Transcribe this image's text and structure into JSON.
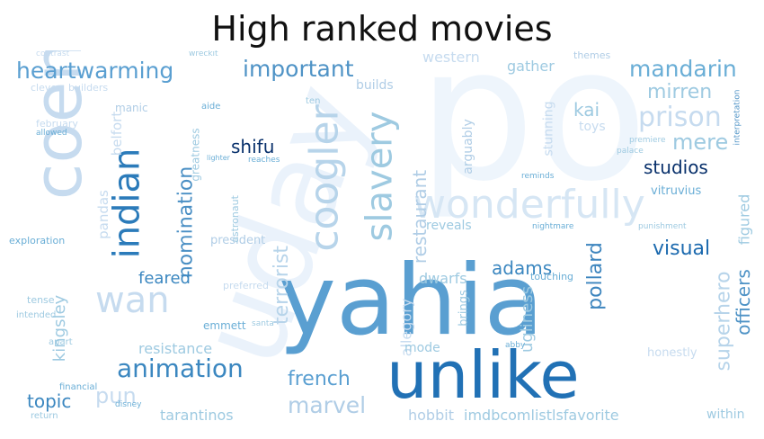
{
  "title": "High ranked movies",
  "words": [
    {
      "text": "po",
      "color": "#eef5fc"
    },
    {
      "text": "coen",
      "color": "#c6dbef"
    },
    {
      "text": "uday",
      "color": "#eaf2fb"
    },
    {
      "text": "yahia",
      "color": "#5a9fd1"
    },
    {
      "text": "unlike",
      "color": "#2171b5"
    },
    {
      "text": "wonderfully",
      "color": "#d6e6f4"
    },
    {
      "text": "slavery",
      "color": "#9ecae1"
    },
    {
      "text": "coogler",
      "color": "#b7d4ea"
    },
    {
      "text": "indian",
      "color": "#2b7bba"
    },
    {
      "text": "wan",
      "color": "#c6dbef"
    },
    {
      "text": "heartwarming",
      "color": "#5a9fd1"
    },
    {
      "text": "important",
      "color": "#4f93c6"
    },
    {
      "text": "mandarin",
      "color": "#6aaed6"
    },
    {
      "text": "mirren",
      "color": "#9ecae1"
    },
    {
      "text": "prison",
      "color": "#c6dbef"
    },
    {
      "text": "mere",
      "color": "#9ecae1"
    },
    {
      "text": "kai",
      "color": "#9ecae1"
    },
    {
      "text": "studios",
      "color": "#08306b"
    },
    {
      "text": "visual",
      "color": "#1c6aaf"
    },
    {
      "text": "shifu",
      "color": "#08306b"
    },
    {
      "text": "nomination",
      "color": "#4a8fc4"
    },
    {
      "text": "animation",
      "color": "#3b87c0"
    },
    {
      "text": "restaurant",
      "color": "#b0cde6"
    },
    {
      "text": "terrorist",
      "color": "#b7d4ea"
    },
    {
      "text": "adams",
      "color": "#3b87c0"
    },
    {
      "text": "pollard",
      "color": "#3d85be"
    },
    {
      "text": "superhero",
      "color": "#b7d4ea"
    },
    {
      "text": "officers",
      "color": "#4f93c6"
    },
    {
      "text": "figured",
      "color": "#9ecae1"
    },
    {
      "text": "marvel",
      "color": "#b0cde6"
    },
    {
      "text": "french",
      "color": "#5a9fd1"
    },
    {
      "text": "topic",
      "color": "#3b87c0"
    },
    {
      "text": "pun",
      "color": "#c6dbef"
    },
    {
      "text": "allegory",
      "color": "#c6dbef"
    },
    {
      "text": "feared",
      "color": "#3b87c0"
    },
    {
      "text": "dwarfs",
      "color": "#9ecae1"
    },
    {
      "text": "ugliness",
      "color": "#9ecae1"
    },
    {
      "text": "kingsley",
      "color": "#9ecae1"
    },
    {
      "text": "resistance",
      "color": "#9ecae1"
    },
    {
      "text": "tarantinos",
      "color": "#9ecae1"
    },
    {
      "text": "imdbcomlistlsfavorite",
      "color": "#9ecae1"
    },
    {
      "text": "hobbit",
      "color": "#b0cde6"
    },
    {
      "text": "within",
      "color": "#9ecae1"
    },
    {
      "text": "pandas",
      "color": "#c6dbef"
    },
    {
      "text": "belfort",
      "color": "#c6dbef"
    },
    {
      "text": "greatness",
      "color": "#9ecae1"
    },
    {
      "text": "arguably",
      "color": "#b0cde6"
    },
    {
      "text": "stunning",
      "color": "#c6dbef"
    },
    {
      "text": "toys",
      "color": "#c6dbef"
    },
    {
      "text": "gather",
      "color": "#9ecae1"
    },
    {
      "text": "builds",
      "color": "#b0cde6"
    },
    {
      "text": "builders",
      "color": "#c6dbef"
    },
    {
      "text": "reveals",
      "color": "#9ecae1"
    },
    {
      "text": "vitruvius",
      "color": "#6aaed6"
    },
    {
      "text": "president",
      "color": "#b0cde6"
    },
    {
      "text": "astronaut",
      "color": "#9ecae1"
    },
    {
      "text": "emmett",
      "color": "#6aaed6"
    },
    {
      "text": "mode",
      "color": "#9ecae1"
    },
    {
      "text": "brings",
      "color": "#9ecae1"
    },
    {
      "text": "exploration",
      "color": "#6aaed6"
    },
    {
      "text": "manic",
      "color": "#b0cde6"
    },
    {
      "text": "february",
      "color": "#c6dbef"
    },
    {
      "text": "clever",
      "color": "#c6dbef"
    },
    {
      "text": "allowed",
      "color": "#6aaed6"
    },
    {
      "text": "preferred",
      "color": "#c6dbef"
    },
    {
      "text": "tense",
      "color": "#9ecae1"
    },
    {
      "text": "intended",
      "color": "#9ecae1"
    },
    {
      "text": "apart",
      "color": "#9ecae1"
    },
    {
      "text": "return",
      "color": "#9ecae1"
    },
    {
      "text": "disney",
      "color": "#6aaed6"
    },
    {
      "text": "honestly",
      "color": "#c6dbef"
    },
    {
      "text": "themes",
      "color": "#b0cde6"
    },
    {
      "text": "reminds",
      "color": "#6aaed6"
    },
    {
      "text": "touching",
      "color": "#6aaed6"
    },
    {
      "text": "nightmare",
      "color": "#6aaed6"
    },
    {
      "text": "punishment",
      "color": "#9ecae1"
    },
    {
      "text": "financial",
      "color": "#6aaed6"
    },
    {
      "text": "interpretation",
      "color": "#4f93c6"
    },
    {
      "text": "contrast",
      "color": "#c6dbef"
    },
    {
      "text": "wreckit",
      "color": "#9ecae1"
    },
    {
      "text": "palace",
      "color": "#9ecae1"
    },
    {
      "text": "premiere",
      "color": "#9ecae1"
    },
    {
      "text": "santa",
      "color": "#9ecae1"
    },
    {
      "text": "abby",
      "color": "#6aaed6"
    },
    {
      "text": "lighter",
      "color": "#6aaed6"
    },
    {
      "text": "reaches",
      "color": "#6aaed6"
    },
    {
      "text": "ten",
      "color": "#9ecae1"
    },
    {
      "text": "aide",
      "color": "#6aaed6"
    },
    {
      "text": "western",
      "color": "#c6dbef"
    }
  ]
}
